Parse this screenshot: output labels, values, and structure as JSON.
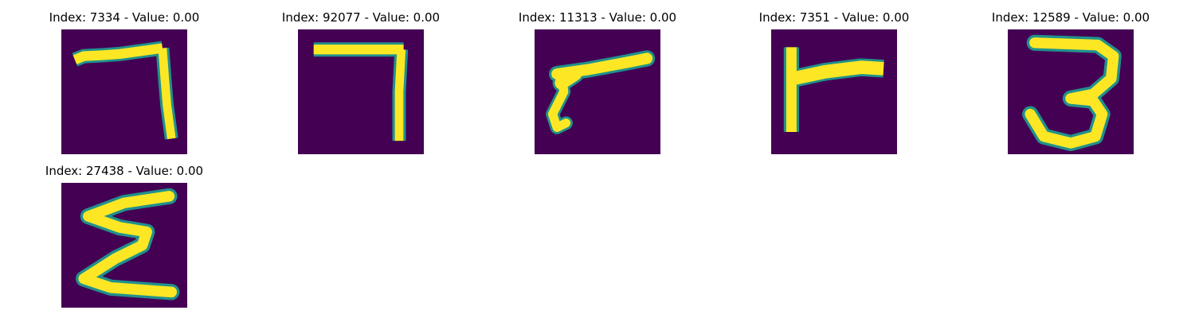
{
  "panels": [
    {
      "title": "Index: 7334 - Value: 0.00",
      "digit": "7"
    },
    {
      "title": "Index: 92077 - Value: 0.00",
      "digit": "7"
    },
    {
      "title": "Index: 11313 - Value: 0.00",
      "digit": "7"
    },
    {
      "title": "Index: 7351 - Value: 0.00",
      "digit": "7"
    },
    {
      "title": "Index: 12589 - Value: 0.00",
      "digit": "3"
    },
    {
      "title": "Index: 27438 - Value: 0.00",
      "digit": "3"
    }
  ],
  "colors": {
    "background": "#440154",
    "stroke_core": "#fde725",
    "stroke_edge": "#21918c",
    "stroke_mid": "#5ec962"
  }
}
